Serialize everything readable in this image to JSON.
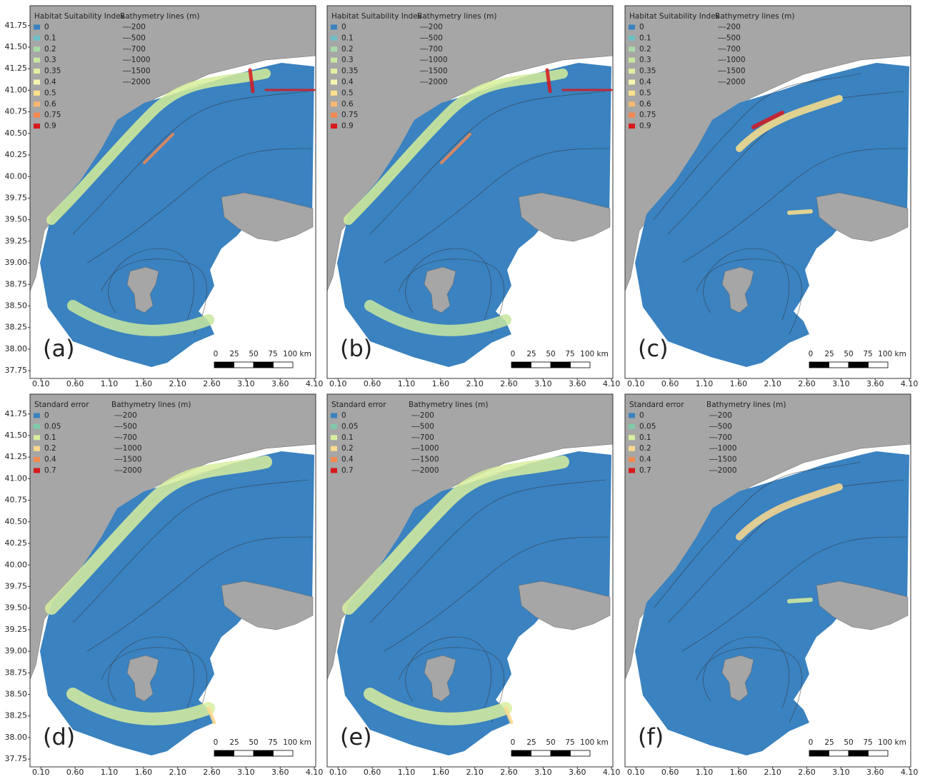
{
  "panels": [
    {
      "label": "(a)",
      "legend_title": "Habitat Suitability Index",
      "legend": [
        {
          "label": "0",
          "color": "#3a82c0"
        },
        {
          "label": "0.1",
          "color": "#6ec0c8"
        },
        {
          "label": "0.2",
          "color": "#a8dba8"
        },
        {
          "label": "0.3",
          "color": "#c8e8a0"
        },
        {
          "label": "0.35",
          "color": "#e0f0a0"
        },
        {
          "label": "0.4",
          "color": "#f5f5b0"
        },
        {
          "label": "0.5",
          "color": "#fde08a"
        },
        {
          "label": "0.6",
          "color": "#fdb870"
        },
        {
          "label": "0.75",
          "color": "#f4884f"
        },
        {
          "label": "0.9",
          "color": "#d7191c"
        }
      ],
      "bathymetry_title": "Bathymetry lines (m)",
      "bathymetry": [
        "-200",
        "-500",
        "-700",
        "-1000",
        "-1500",
        "-2000"
      ],
      "scale": [
        "0",
        "25",
        "50",
        "75",
        "100 km"
      ],
      "xlim": [
        -0.06,
        4.12
      ],
      "ylim": [
        37.66,
        41.98
      ],
      "xticks": [
        {
          "value": 0.1,
          "label": "0.10"
        },
        {
          "value": 0.6,
          "label": "0.60"
        },
        {
          "value": 1.1,
          "label": "1.10"
        },
        {
          "value": 1.6,
          "label": "1.60"
        },
        {
          "value": 2.1,
          "label": "2.10"
        },
        {
          "value": 2.6,
          "label": "2.60"
        },
        {
          "value": 3.1,
          "label": "3.10"
        },
        {
          "value": 3.6,
          "label": "3.60"
        },
        {
          "value": 4.1,
          "label": "4.10"
        }
      ],
      "yticks": [
        41.75,
        {
          "value": 41.5,
          "label": "41.50"
        },
        41.25,
        {
          "value": 41.0,
          "label": "41.00"
        },
        40.75,
        {
          "value": 40.5,
          "label": "40.50"
        },
        40.25,
        {
          "value": 40.0,
          "label": "40.00"
        },
        39.75,
        {
          "value": 39.5,
          "label": "39.50"
        },
        39.25,
        {
          "value": 39.0,
          "label": "39.00"
        },
        38.75,
        {
          "value": 38.5,
          "label": "38.50"
        },
        38.25,
        {
          "value": 38.0,
          "label": "38.00"
        },
        37.75
      ]
    },
    {
      "label": "(b)",
      "legend_title": "Habitat Suitability Index",
      "legend": [
        {
          "label": "0",
          "color": "#3a82c0"
        },
        {
          "label": "0.1",
          "color": "#6ec0c8"
        },
        {
          "label": "0.2",
          "color": "#a8dba8"
        },
        {
          "label": "0.3",
          "color": "#c8e8a0"
        },
        {
          "label": "0.35",
          "color": "#e0f0a0"
        },
        {
          "label": "0.4",
          "color": "#f5f5b0"
        },
        {
          "label": "0.5",
          "color": "#fde08a"
        },
        {
          "label": "0.6",
          "color": "#fdb870"
        },
        {
          "label": "0.75",
          "color": "#f4884f"
        },
        {
          "label": "0.9",
          "color": "#d7191c"
        }
      ],
      "bathymetry_title": "Bathymetry lines (m)",
      "bathymetry": [
        "-200",
        "-500",
        "-700",
        "-1000",
        "-1500",
        "-2000"
      ],
      "scale": [
        "0",
        "25",
        "50",
        "75",
        "100 km"
      ],
      "xlim": [
        -0.06,
        4.12
      ],
      "ylim": [
        37.66,
        41.98
      ],
      "xticks": [
        {
          "value": 0.1,
          "label": "0.10"
        },
        {
          "value": 0.6,
          "label": "0.60"
        },
        {
          "value": 1.1,
          "label": "1.10"
        },
        {
          "value": 1.6,
          "label": "1.60"
        },
        {
          "value": 2.1,
          "label": "2.10"
        },
        {
          "value": 2.6,
          "label": "2.60"
        },
        {
          "value": 3.1,
          "label": "3.10"
        },
        {
          "value": 3.6,
          "label": "3.60"
        },
        {
          "value": 4.1,
          "label": "4.10"
        }
      ]
    },
    {
      "label": "(c)",
      "legend_title": "Habitat Suitability Index",
      "legend": [
        {
          "label": "0",
          "color": "#3a82c0"
        },
        {
          "label": "0.1",
          "color": "#6ec0c8"
        },
        {
          "label": "0.2",
          "color": "#a8dba8"
        },
        {
          "label": "0.3",
          "color": "#c8e8a0"
        },
        {
          "label": "0.35",
          "color": "#e0f0a0"
        },
        {
          "label": "0.4",
          "color": "#f5f5b0"
        },
        {
          "label": "0.5",
          "color": "#fde08a"
        },
        {
          "label": "0.6",
          "color": "#fdb870"
        },
        {
          "label": "0.75",
          "color": "#f4884f"
        },
        {
          "label": "0.9",
          "color": "#d7191c"
        }
      ],
      "bathymetry_title": "Bathymetry lines (m)",
      "bathymetry": [
        "-200",
        "-500",
        "-700",
        "-1000",
        "-1500",
        "-2000"
      ],
      "scale": [
        "0",
        "25",
        "50",
        "75",
        "100 km"
      ],
      "xlim": [
        -0.06,
        4.12
      ],
      "ylim": [
        37.66,
        41.98
      ],
      "xticks": [
        {
          "value": 0.1,
          "label": "0.10"
        },
        {
          "value": 0.6,
          "label": "0.60"
        },
        {
          "value": 1.1,
          "label": "1.10"
        },
        {
          "value": 1.6,
          "label": "1.60"
        },
        {
          "value": 2.1,
          "label": "2.10"
        },
        {
          "value": 2.6,
          "label": "2.60"
        },
        {
          "value": 3.1,
          "label": "3.10"
        },
        {
          "value": 3.6,
          "label": "3.60"
        },
        {
          "value": 4.1,
          "label": "4.10"
        }
      ]
    },
    {
      "label": "(d)",
      "legend_title": "Standard error",
      "legend": [
        {
          "label": "0",
          "color": "#3a82c0"
        },
        {
          "label": "0.05",
          "color": "#7fcaa8"
        },
        {
          "label": "0.1",
          "color": "#d8ef9e"
        },
        {
          "label": "0.2",
          "color": "#fed98e"
        },
        {
          "label": "0.4",
          "color": "#f4884f"
        },
        {
          "label": "0.7",
          "color": "#d7191c"
        }
      ],
      "bathymetry_title": "Bathymetry lines (m)",
      "bathymetry": [
        "-200",
        "-500",
        "-700",
        "-1000",
        "-1500",
        "-2000"
      ],
      "scale": [
        "0",
        "25",
        "50",
        "75",
        "100 km"
      ],
      "xlim": [
        -0.06,
        4.12
      ],
      "ylim": [
        37.66,
        41.98
      ],
      "xticks": [
        {
          "value": 0.1,
          "label": "0.10"
        },
        {
          "value": 0.6,
          "label": "0.60"
        },
        {
          "value": 1.1,
          "label": "1.10"
        },
        {
          "value": 1.6,
          "label": "1.60"
        },
        {
          "value": 2.1,
          "label": "2.10"
        },
        {
          "value": 2.6,
          "label": "2.60"
        },
        {
          "value": 3.1,
          "label": "3.10"
        },
        {
          "value": 3.6,
          "label": "3.60"
        },
        {
          "value": 4.1,
          "label": "4.10"
        }
      ],
      "yticks": [
        41.75,
        {
          "value": 41.5,
          "label": "41.50"
        },
        41.25,
        {
          "value": 41.0,
          "label": "41.00"
        },
        40.75,
        {
          "value": 40.5,
          "label": "40.50"
        },
        40.25,
        {
          "value": 40.0,
          "label": "40.00"
        },
        39.75,
        {
          "value": 39.5,
          "label": "39.50"
        },
        39.25,
        {
          "value": 39.0,
          "label": "39.00"
        },
        38.75,
        {
          "value": 38.5,
          "label": "38.50"
        },
        38.25,
        {
          "value": 38.0,
          "label": "38.00"
        },
        37.75
      ]
    },
    {
      "label": "(e)",
      "legend_title": "Standard error",
      "legend": [
        {
          "label": "0",
          "color": "#3a82c0"
        },
        {
          "label": "0.05",
          "color": "#7fcaa8"
        },
        {
          "label": "0.1",
          "color": "#d8ef9e"
        },
        {
          "label": "0.2",
          "color": "#fed98e"
        },
        {
          "label": "0.4",
          "color": "#f4884f"
        },
        {
          "label": "0.7",
          "color": "#d7191c"
        }
      ],
      "bathymetry_title": "Bathymetry lines (m)",
      "bathymetry": [
        "-200",
        "-500",
        "-700",
        "-1000",
        "-1500",
        "-2000"
      ],
      "scale": [
        "0",
        "25",
        "50",
        "75",
        "100 km"
      ],
      "xlim": [
        -0.06,
        4.12
      ],
      "ylim": [
        37.66,
        41.98
      ],
      "xticks": [
        {
          "value": 0.1,
          "label": "0.10"
        },
        {
          "value": 0.6,
          "label": "0.60"
        },
        {
          "value": 1.1,
          "label": "1.10"
        },
        {
          "value": 1.6,
          "label": "1.60"
        },
        {
          "value": 2.1,
          "label": "2.10"
        },
        {
          "value": 2.6,
          "label": "2.60"
        },
        {
          "value": 3.1,
          "label": "3.10"
        },
        {
          "value": 3.6,
          "label": "3.60"
        },
        {
          "value": 4.1,
          "label": "4.10"
        }
      ]
    },
    {
      "label": "(f)",
      "legend_title": "Standard error",
      "legend": [
        {
          "label": "0",
          "color": "#3a82c0"
        },
        {
          "label": "0.05",
          "color": "#7fcaa8"
        },
        {
          "label": "0.1",
          "color": "#d8ef9e"
        },
        {
          "label": "0.2",
          "color": "#fed98e"
        },
        {
          "label": "0.4",
          "color": "#f4884f"
        },
        {
          "label": "0.7",
          "color": "#d7191c"
        }
      ],
      "bathymetry_title": "Bathymetry lines (m)",
      "bathymetry": [
        "-200",
        "-500",
        "-700",
        "-1000",
        "-1500",
        "-2000"
      ],
      "scale": [
        "0",
        "25",
        "50",
        "75",
        "100 km"
      ],
      "xlim": [
        -0.06,
        4.12
      ],
      "ylim": [
        37.66,
        41.98
      ],
      "xticks": [
        {
          "value": 0.1,
          "label": "0.10"
        },
        {
          "value": 0.6,
          "label": "0.60"
        },
        {
          "value": 1.1,
          "label": "1.10"
        },
        {
          "value": 1.6,
          "label": "1.60"
        },
        {
          "value": 2.1,
          "label": "2.10"
        },
        {
          "value": 2.6,
          "label": "2.60"
        },
        {
          "value": 3.1,
          "label": "3.10"
        },
        {
          "value": 3.6,
          "label": "3.60"
        },
        {
          "value": 4.1,
          "label": "4.10"
        }
      ]
    }
  ]
}
